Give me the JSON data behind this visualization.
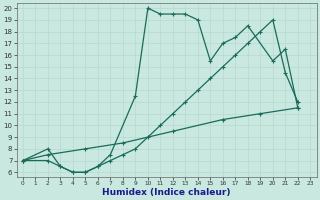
{
  "xlabel": "Humidex (Indice chaleur)",
  "bg_color": "#c8e8e0",
  "line_color": "#1a6b5a",
  "grid_color": "#b8d8d0",
  "xlim": [
    -0.5,
    23.5
  ],
  "ylim": [
    5.6,
    20.4
  ],
  "xticks": [
    0,
    1,
    2,
    3,
    4,
    5,
    6,
    7,
    8,
    9,
    10,
    11,
    12,
    13,
    14,
    15,
    16,
    17,
    18,
    19,
    20,
    21,
    22,
    23
  ],
  "yticks": [
    6,
    7,
    8,
    9,
    10,
    11,
    12,
    13,
    14,
    15,
    16,
    17,
    18,
    19,
    20
  ],
  "line1_x": [
    0,
    2,
    3,
    4,
    5,
    6,
    7,
    9,
    10,
    11,
    12,
    13,
    14,
    15,
    16,
    17,
    18,
    20,
    21,
    22
  ],
  "line1_y": [
    7,
    8,
    6.5,
    6,
    6,
    6.5,
    7.5,
    12.5,
    20,
    19.5,
    19.5,
    19.5,
    19,
    15.5,
    17,
    17.5,
    18.5,
    15.5,
    16.5,
    11.5
  ],
  "line2_x": [
    0,
    2,
    3,
    4,
    5,
    6,
    7,
    8,
    9,
    10,
    11,
    12,
    13,
    14,
    15,
    16,
    17,
    18,
    19,
    20,
    21,
    22
  ],
  "line2_y": [
    7,
    7,
    6.5,
    6,
    6,
    6.5,
    7,
    7.5,
    8,
    9,
    10,
    11,
    12,
    13,
    14,
    15,
    16,
    17,
    18,
    19,
    14.5,
    12
  ],
  "line3_x": [
    0,
    2,
    5,
    8,
    12,
    16,
    19,
    22
  ],
  "line3_y": [
    7,
    7.5,
    8,
    8.5,
    9.5,
    10.5,
    11,
    11.5
  ]
}
